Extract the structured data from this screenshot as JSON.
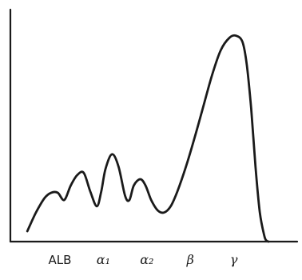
{
  "chart_data": {
    "type": "line",
    "title": "",
    "xlabel": "",
    "ylabel": "",
    "categories": [
      "ALB",
      "α₁",
      "α₂",
      "β",
      "γ"
    ],
    "category_positions": [
      0,
      1,
      2,
      3,
      4
    ],
    "xlim": [
      -0.9,
      5.0
    ],
    "ylim": [
      0,
      100
    ],
    "grid": false,
    "series": [
      {
        "x": [
          -0.75,
          -0.55,
          -0.35,
          -0.2,
          -0.05,
          0.1,
          0.25,
          0.4,
          0.55,
          0.7,
          0.85,
          0.95,
          1.05,
          1.2,
          1.35,
          1.5,
          1.6,
          1.7,
          1.85,
          1.97,
          2.1,
          2.25,
          2.4,
          2.55,
          2.7,
          2.9,
          3.1,
          3.3,
          3.5,
          3.7,
          3.9,
          4.05,
          4.2,
          4.3,
          4.4,
          4.5,
          4.6,
          4.7,
          4.75,
          4.8
        ],
        "y": [
          5,
          14,
          21,
          23.5,
          23.5,
          20,
          27,
          32,
          33,
          24,
          17,
          24,
          35,
          42,
          36,
          22,
          20,
          27,
          30,
          27,
          20,
          15,
          14,
          17,
          24,
          36,
          50,
          65,
          80,
          92,
          98,
          99,
          96,
          85,
          64,
          36,
          14,
          3,
          0.5,
          0
        ]
      }
    ]
  }
}
